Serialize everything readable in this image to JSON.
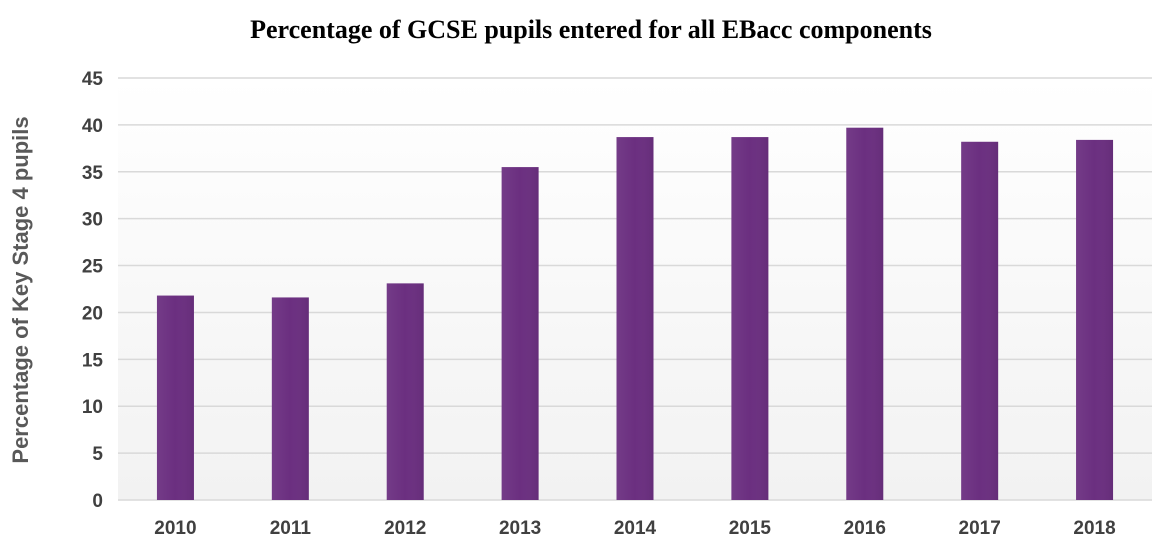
{
  "chart_data": {
    "type": "bar",
    "title": "Percentage of GCSE pupils entered for all EBacc components",
    "xlabel": "",
    "ylabel": "Percentage of Key Stage 4 pupils",
    "categories": [
      "2010",
      "2011",
      "2012",
      "2013",
      "2014",
      "2015",
      "2016",
      "2017",
      "2018"
    ],
    "values": [
      21.8,
      21.6,
      23.1,
      35.5,
      38.7,
      38.7,
      39.7,
      38.2,
      38.4
    ],
    "ylim": [
      0,
      45
    ],
    "yticks": [
      0,
      5,
      10,
      15,
      20,
      25,
      30,
      35,
      40,
      45
    ],
    "grid": true,
    "legend": "none",
    "colors": {
      "bar": "#6b2f80",
      "gridline": "#d9d9d9",
      "background_top": "#ffffff",
      "background_bottom": "#f2f2f2"
    }
  }
}
